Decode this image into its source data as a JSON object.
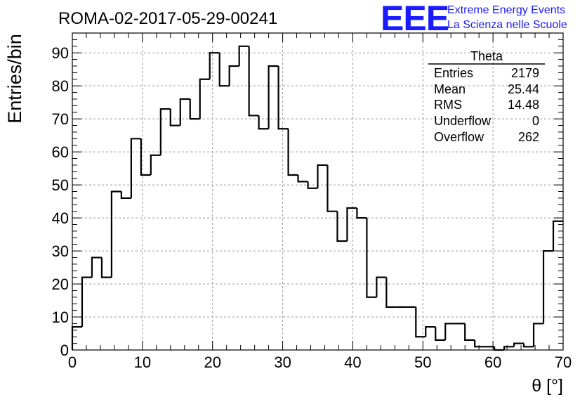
{
  "title": "ROMA-02-2017-05-29-00241",
  "logo": {
    "mark": "EEE",
    "line1": "Extreme Energy Events",
    "line2": "La Scienza nelle Scuole",
    "color": "#1a1aff"
  },
  "stats": {
    "name": "Theta",
    "rows": [
      {
        "label": "Entries",
        "value": "2179"
      },
      {
        "label": "Mean",
        "value": "25.44"
      },
      {
        "label": "RMS",
        "value": "14.48"
      },
      {
        "label": "Underflow",
        "value": "0"
      },
      {
        "label": "Overflow",
        "value": "262"
      }
    ]
  },
  "chart_data": {
    "type": "bar",
    "histogram": true,
    "title": "ROMA-02-2017-05-29-00241",
    "xlabel": "θ [°]",
    "ylabel": "Entries/bin",
    "xlim": [
      0,
      70
    ],
    "ylim": [
      0,
      96
    ],
    "bin_width": 1.4,
    "grid": true,
    "x_ticks": [
      0,
      10,
      20,
      30,
      40,
      50,
      60,
      70
    ],
    "y_ticks": [
      0,
      10,
      20,
      30,
      40,
      50,
      60,
      70,
      80,
      90
    ],
    "values": [
      7,
      22,
      28,
      22,
      48,
      46,
      64,
      53,
      59,
      73,
      68,
      76,
      70,
      82,
      90,
      80,
      86,
      92,
      71,
      67,
      86,
      67,
      53,
      51,
      49,
      56,
      42,
      33,
      43,
      40,
      16,
      22,
      13,
      13,
      13,
      4,
      7,
      3,
      8,
      8,
      3,
      1,
      1,
      0,
      1,
      2,
      1,
      8,
      30,
      39
    ],
    "line_color": "#000000",
    "grid_color": "#9a9a9a"
  }
}
